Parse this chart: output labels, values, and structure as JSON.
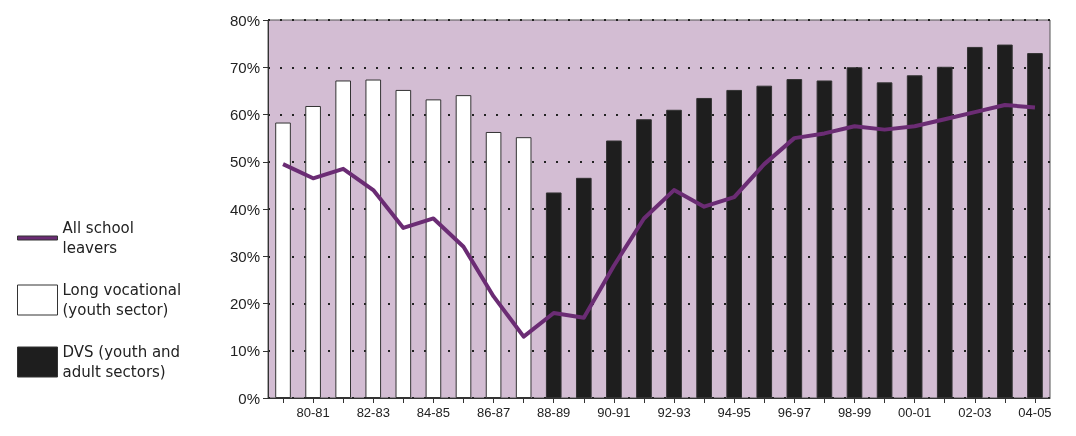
{
  "chart_data": {
    "type": "bar",
    "categories": [
      null,
      "80-81",
      null,
      "82-83",
      null,
      "84-85",
      null,
      "86-87",
      null,
      "88-89",
      null,
      "90-91",
      null,
      "92-93",
      null,
      "94-95",
      null,
      "96-97",
      null,
      "98-99",
      null,
      "00-01",
      null,
      "02-03",
      null,
      "04-05"
    ],
    "series": [
      {
        "name": "All school leavers",
        "type": "line",
        "color": "#6b2c74",
        "values": [
          49.5,
          46.5,
          48.5,
          44,
          36,
          38,
          32,
          21.5,
          13,
          18,
          17,
          28,
          38,
          44,
          40.5,
          42.5,
          49.5,
          55,
          56,
          57.5,
          56.8,
          57.5,
          59,
          60.5,
          62,
          61.5
        ]
      },
      {
        "name": "Long vocational (youth sector)",
        "color": "#ffffff",
        "values": [
          58.3,
          61.8,
          67.2,
          67.4,
          65.2,
          63.2,
          64.1,
          56.3,
          55.2,
          null,
          null,
          null,
          null,
          null,
          null,
          null,
          null,
          null,
          null,
          null,
          null,
          null,
          null,
          null,
          null,
          null
        ]
      },
      {
        "name": "DVS (youth and adult sectors)",
        "color": "#1e1e1e",
        "values": [
          null,
          null,
          null,
          null,
          null,
          null,
          null,
          null,
          null,
          43.5,
          46.6,
          54.5,
          59,
          61,
          63.5,
          65.2,
          66.1,
          67.5,
          67.2,
          70,
          66.8,
          68.3,
          70.1,
          74.3,
          74.8,
          73
        ]
      }
    ],
    "ylim": [
      0,
      80
    ],
    "yticks": [
      {
        "value": 0,
        "label": "0%"
      },
      {
        "value": 10,
        "label": "10%"
      },
      {
        "value": 20,
        "label": "20%"
      },
      {
        "value": 30,
        "label": "30%"
      },
      {
        "value": 40,
        "label": "40%"
      },
      {
        "value": 50,
        "label": "50%"
      },
      {
        "value": 60,
        "label": "60%"
      },
      {
        "value": 70,
        "label": "70%"
      },
      {
        "value": 80,
        "label": "80%"
      }
    ],
    "grid": "y",
    "legend": "left",
    "marker": "none"
  }
}
